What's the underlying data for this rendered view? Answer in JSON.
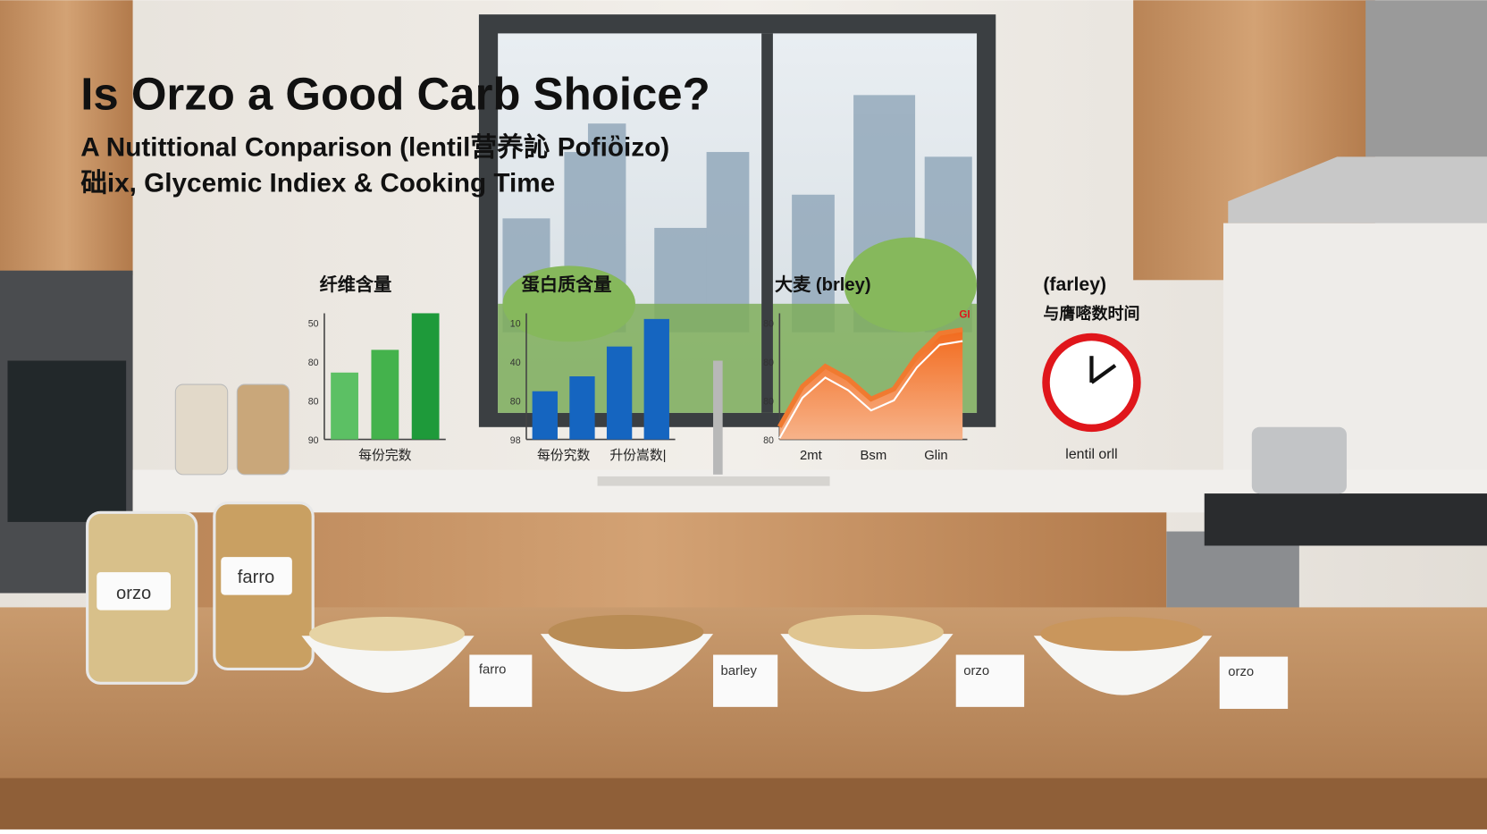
{
  "title": "Is Orzo a Good Carb Shoice?",
  "subtitle": [
    "A Nutittional Conparison (lentil营养訫 Pofiὂizo)",
    "础ix, Glycemic Indiex & Cooking Time"
  ],
  "panels": [
    {
      "type": "bar",
      "title": "纤维含量",
      "yticks": [
        "50",
        "80",
        "80",
        "90"
      ],
      "ylim": [
        0,
        100
      ],
      "values": [
        53,
        71,
        100
      ],
      "colors": [
        "#5cc064",
        "#44b24c",
        "#1e9a3a"
      ],
      "xlabels": [
        "每份完数"
      ]
    },
    {
      "type": "bar",
      "title": "蛋白质含量",
      "yticks": [
        "10",
        "40",
        "80",
        "98"
      ],
      "ylim": [
        0,
        110
      ],
      "values": [
        42,
        55,
        81,
        105
      ],
      "colors": [
        "#1565c0",
        "#1565c0",
        "#1565c0",
        "#1565c0"
      ],
      "xlabels": [
        "每份究数",
        "升份嵩数|"
      ]
    },
    {
      "type": "area",
      "title": "大麦 (brley)",
      "corner_label": "GI",
      "yticks": [
        "80",
        "80",
        "80",
        "80"
      ],
      "ylim": [
        0,
        100
      ],
      "values": [
        10,
        42,
        58,
        48,
        32,
        40,
        66,
        84,
        87
      ],
      "colors": [
        "#f07a30"
      ],
      "xlabels": [
        "2mt",
        "Bsm",
        "Glin"
      ]
    }
  ],
  "clock": {
    "title": "(farley)",
    "subtitle": "与膺嘧数时间",
    "label": "lentil orll"
  },
  "jars": [
    "orzo",
    "farro"
  ],
  "cards": [
    "farro",
    "barley",
    "orzo",
    "orzo"
  ]
}
